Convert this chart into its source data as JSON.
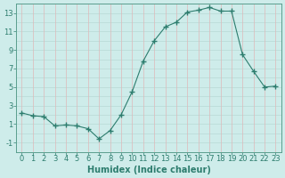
{
  "x": [
    0,
    1,
    2,
    3,
    4,
    5,
    6,
    7,
    8,
    9,
    10,
    11,
    12,
    13,
    14,
    15,
    16,
    17,
    18,
    19,
    20,
    21,
    22,
    23
  ],
  "y": [
    2.2,
    1.9,
    1.8,
    0.8,
    0.9,
    0.8,
    0.5,
    -0.6,
    0.3,
    2.0,
    4.5,
    7.8,
    10.0,
    11.5,
    12.0,
    13.1,
    13.3,
    13.6,
    13.2,
    13.2,
    8.5,
    6.7,
    5.0,
    5.1
  ],
  "xlabel": "Humidex (Indice chaleur)",
  "line_color": "#2d7d6e",
  "marker": "+",
  "marker_size": 4,
  "marker_lw": 1.0,
  "bg_color": "#ceecea",
  "h_grid_color": "#b8d8d5",
  "v_grid_color": "#deb8b8",
  "ylim": [
    -2,
    14
  ],
  "xlim": [
    -0.5,
    23.5
  ],
  "yticks": [
    -1,
    1,
    3,
    5,
    7,
    9,
    11,
    13
  ],
  "all_y_grid": [
    -2,
    -1,
    0,
    1,
    2,
    3,
    4,
    5,
    6,
    7,
    8,
    9,
    10,
    11,
    12,
    13,
    14
  ],
  "xlabel_fontsize": 7,
  "tick_fontsize": 6,
  "tick_color": "#2d7d6e",
  "axis_color": "#5a9e8e",
  "lw": 0.8
}
